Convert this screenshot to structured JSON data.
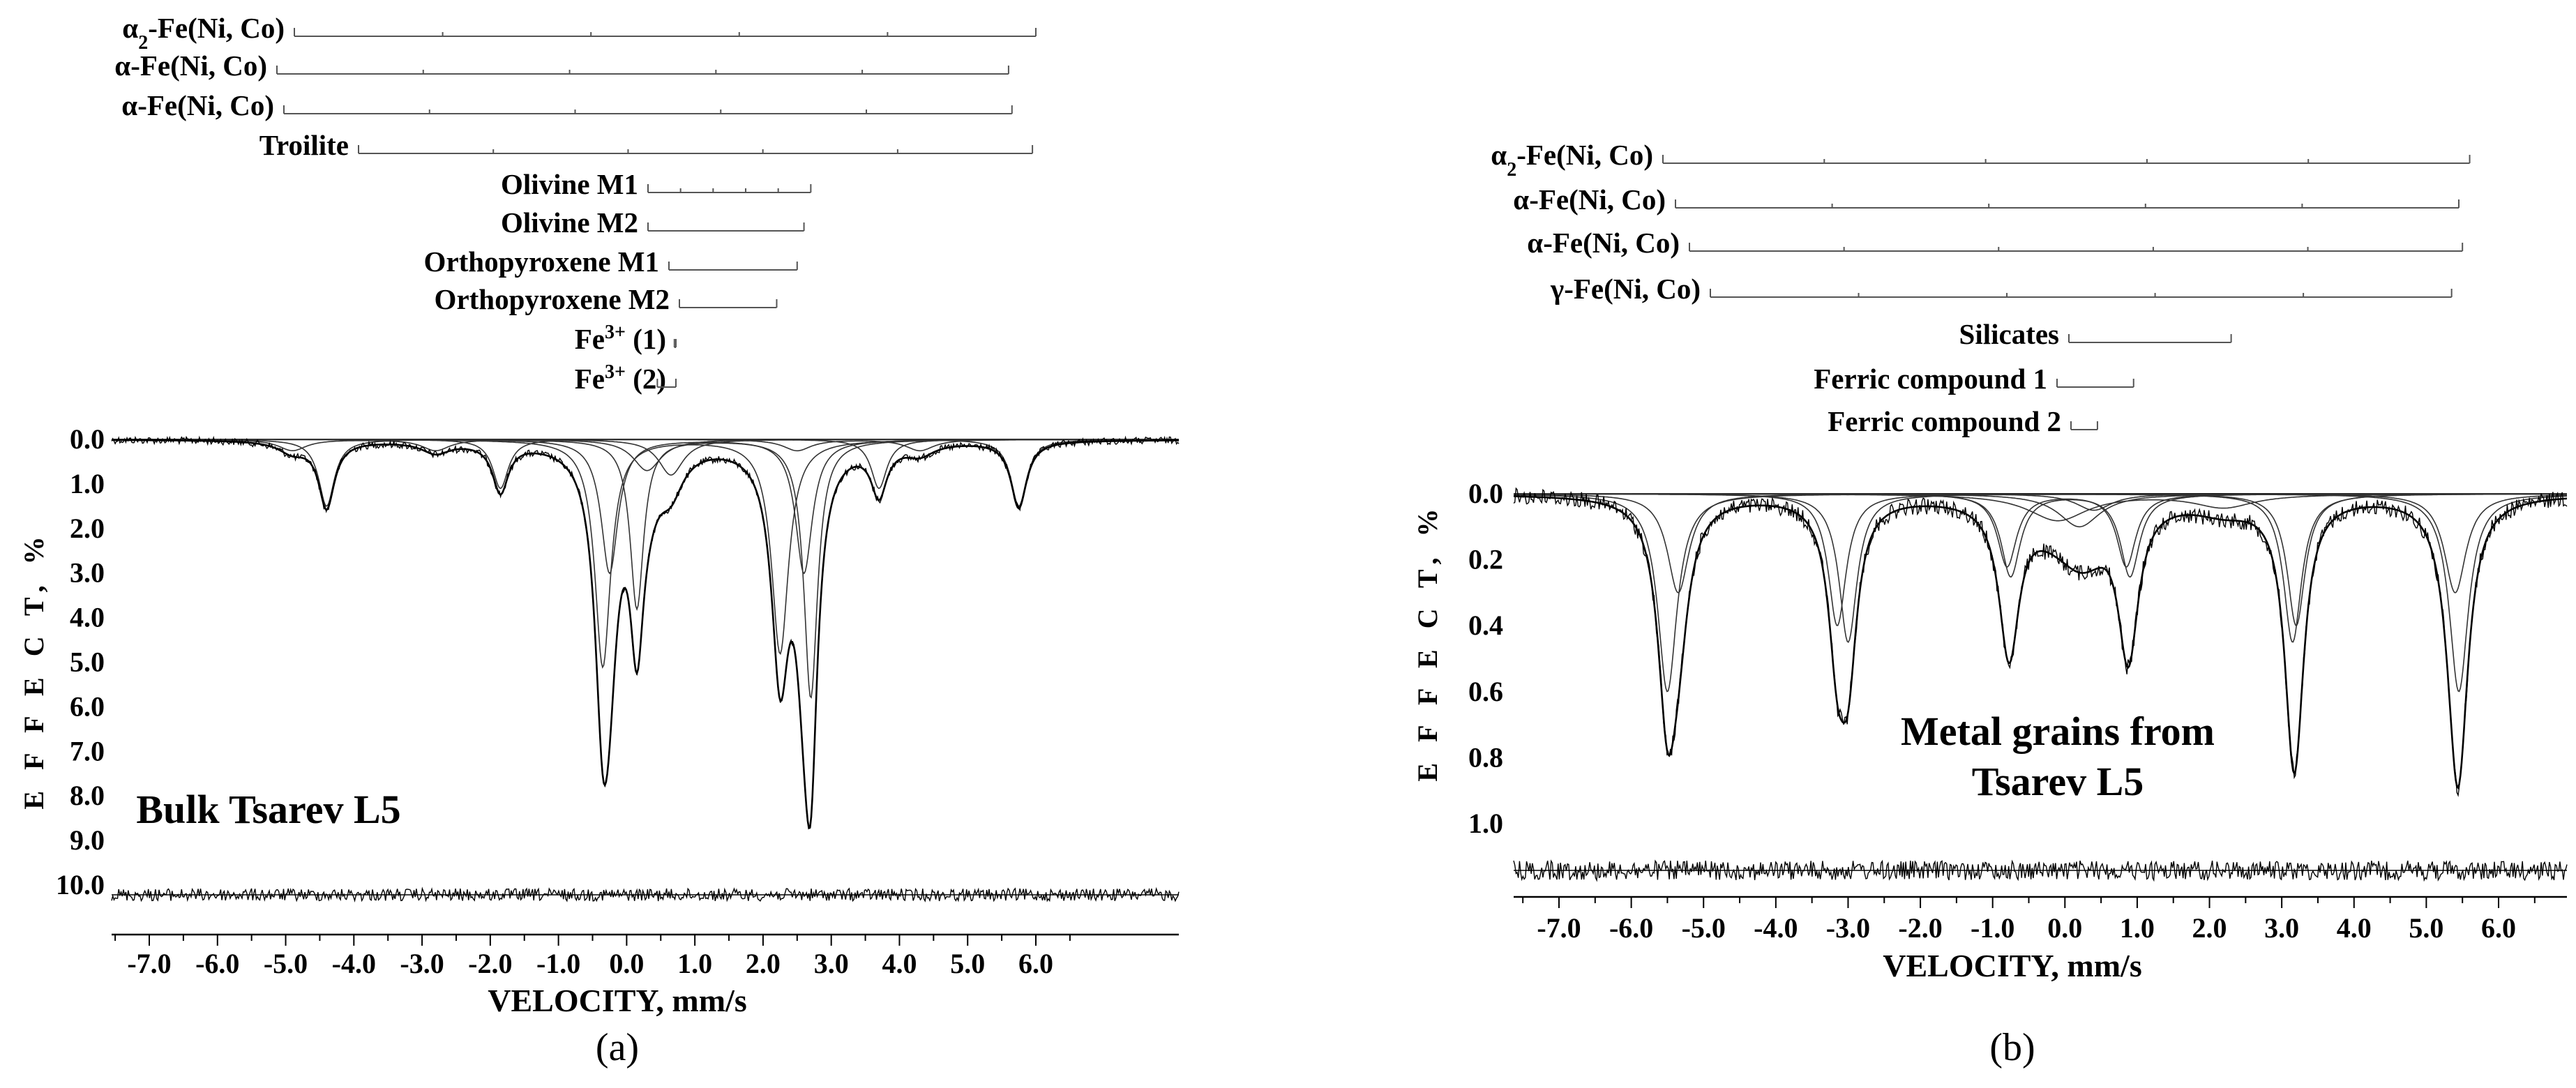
{
  "panels": [
    {
      "panel_label": "(a)",
      "title_lines": [
        "Bulk Tsarev L5"
      ],
      "components": [
        {
          "label_parts": [
            {
              "t": "α"
            },
            {
              "t": "2",
              "sub": true
            },
            {
              "t": "-Fe(Ni, Co)"
            }
          ],
          "start": -5.05,
          "end": 6.0
        },
        {
          "label_parts": [
            {
              "t": "α"
            },
            {
              "t": "-Fe(Ni, Co)"
            }
          ],
          "start": -5.15,
          "end": 5.6
        },
        {
          "label_parts": [
            {
              "t": "α"
            },
            {
              "t": "-Fe(Ni, Co)"
            }
          ],
          "start": -5.1,
          "end": 5.65
        },
        {
          "label_parts": [
            {
              "t": "Troilite"
            }
          ],
          "start": -4.4,
          "end": 5.95
        },
        {
          "label_parts": [
            {
              "t": "Olivine M1"
            }
          ],
          "start": -0.4,
          "end": 2.7
        },
        {
          "label_parts": [
            {
              "t": "Olivine M2"
            }
          ],
          "start": -0.4,
          "end": 2.6
        },
        {
          "label_parts": [
            {
              "t": "Orthopyroxene M1"
            }
          ],
          "start": -0.3,
          "end": 2.5
        },
        {
          "label_parts": [
            {
              "t": "Orthopyroxene M2"
            }
          ],
          "start": -0.2,
          "end": 2.2
        },
        {
          "label_parts": [
            {
              "t": "Fe"
            },
            {
              "t": "3+",
              "sup": true
            },
            {
              "t": " (1)"
            }
          ],
          "start": -0.15,
          "end": 0.7
        },
        {
          "label_parts": [
            {
              "t": "Fe"
            },
            {
              "t": "3+",
              "sup": true
            },
            {
              "t": " (2)"
            }
          ],
          "start": -0.15,
          "end": 0.45
        }
      ],
      "chart_data": {
        "type": "line",
        "title": "Bulk Tsarev L5",
        "xlabel": "VELOCITY,  mm/s",
        "ylabel": "E F F E C T,  %",
        "xlim": [
          -7.8,
          7.0
        ],
        "ylim": [
          0,
          10.8
        ],
        "y_inverted": true,
        "x_ticks": [
          -7.0,
          -6.0,
          -5.0,
          -4.0,
          -3.0,
          -2.0,
          -1.0,
          0.0,
          1.0,
          2.0,
          3.0,
          4.0,
          5.0,
          6.0
        ],
        "x_tick_labels": [
          "-7.0",
          "-6.0",
          "-5.0",
          "-4.0",
          "-3.0",
          "-2.0",
          "-1.0",
          "0.0",
          "1.0",
          "2.0",
          "3.0",
          "4.0",
          "5.0",
          "6.0"
        ],
        "y_ticks": [
          0,
          1,
          2,
          3,
          4,
          5,
          6,
          7,
          8,
          9,
          10
        ],
        "y_tick_labels": [
          "0.0",
          "1.0",
          "2.0",
          "3.0",
          "4.0",
          "5.0",
          "6.0",
          "7.0",
          "8.0",
          "9.0",
          "10.0"
        ],
        "grid": false,
        "residual_baseline": 10.3,
        "series": [
          {
            "peaks": [
              {
                "x": -4.4,
                "depth": 1.5,
                "w": 0.14
              }
            ]
          },
          {
            "peaks": [
              {
                "x": -1.85,
                "depth": 1.1,
                "w": 0.14
              }
            ]
          },
          {
            "peaks": [
              {
                "x": 3.7,
                "depth": 1.1,
                "w": 0.14
              }
            ]
          },
          {
            "peaks": [
              {
                "x": 5.75,
                "depth": 1.5,
                "w": 0.14
              }
            ]
          },
          {
            "peaks": [
              {
                "x": -0.35,
                "depth": 5.1,
                "w": 0.14
              },
              {
                "x": 2.25,
                "depth": 4.8,
                "w": 0.15
              }
            ]
          },
          {
            "peaks": [
              {
                "x": 0.15,
                "depth": 3.8,
                "w": 0.12
              },
              {
                "x": 2.7,
                "depth": 5.8,
                "w": 0.12
              }
            ]
          },
          {
            "peaks": [
              {
                "x": -0.25,
                "depth": 3.0,
                "w": 0.15
              },
              {
                "x": 2.6,
                "depth": 3.0,
                "w": 0.15
              }
            ]
          },
          {
            "peaks": [
              {
                "x": 0.65,
                "depth": 0.8,
                "w": 0.22
              }
            ]
          },
          {
            "peaks": [
              {
                "x": 0.3,
                "depth": 0.7,
                "w": 0.25
              }
            ]
          },
          {
            "peaks": [
              {
                "x": -4.9,
                "depth": 0.25,
                "w": 0.25
              },
              {
                "x": -2.8,
                "depth": 0.25,
                "w": 0.25
              },
              {
                "x": 2.5,
                "depth": 0.25,
                "w": 0.25
              },
              {
                "x": 4.3,
                "depth": 0.25,
                "w": 0.25
              }
            ]
          }
        ]
      }
    },
    {
      "panel_label": "(b)",
      "title_lines": [
        "Metal grains from",
        "Tsarev L5"
      ],
      "components": [
        {
          "label_parts": [
            {
              "t": "α"
            },
            {
              "t": "2",
              "sub": true
            },
            {
              "t": "-Fe(Ni, Co)"
            }
          ],
          "start": -5.5,
          "end": 5.6
        },
        {
          "label_parts": [
            {
              "t": "α"
            },
            {
              "t": "-Fe(Ni, Co)"
            }
          ],
          "start": -5.45,
          "end": 5.45
        },
        {
          "label_parts": [
            {
              "t": "α"
            },
            {
              "t": "-Fe(Ni, Co)"
            }
          ],
          "start": -5.35,
          "end": 5.5
        },
        {
          "label_parts": [
            {
              "t": "γ"
            },
            {
              "t": "-Fe(Ni, Co)"
            }
          ],
          "start": -5.2,
          "end": 5.35
        },
        {
          "label_parts": [
            {
              "t": "Silicates"
            }
          ],
          "start": 0.15,
          "end": 2.3
        },
        {
          "label_parts": [
            {
              "t": "Ferric compound 1"
            }
          ],
          "start": 0.0,
          "end": 0.95
        },
        {
          "label_parts": [
            {
              "t": "Ferric compound 2"
            }
          ],
          "start": 0.2,
          "end": 0.45
        }
      ],
      "chart_data": {
        "type": "line",
        "title": "Metal grains from Tsarev L5",
        "xlabel": "VELOCITY,  mm/s",
        "ylabel": "E F F E C T,  %",
        "xlim": [
          -7.8,
          7.0
        ],
        "ylim": [
          -0.08,
          1.3
        ],
        "y_inverted": true,
        "x_ticks": [
          -7.0,
          -6.0,
          -5.0,
          -4.0,
          -3.0,
          -2.0,
          -1.0,
          0.0,
          1.0,
          2.0,
          3.0,
          4.0,
          5.0,
          6.0
        ],
        "x_tick_labels": [
          "-7.0",
          "-6.0",
          "-5.0",
          "-4.0",
          "-3.0",
          "-2.0",
          "-1.0",
          "0.0",
          "1.0",
          "2.0",
          "3.0",
          "4.0",
          "5.0",
          "6.0"
        ],
        "y_ticks": [
          0.0,
          0.2,
          0.4,
          0.6,
          0.8,
          1.0
        ],
        "y_tick_labels": [
          "0.0",
          "0.2",
          "0.4",
          "0.6",
          "0.8",
          "1.0"
        ],
        "grid": false,
        "residual_baseline": 1.13,
        "series": [
          {
            "peaks": [
              {
                "x": -5.35,
                "depth": 0.3,
                "w": 0.18
              },
              {
                "x": 5.4,
                "depth": 0.3,
                "w": 0.18
              }
            ]
          },
          {
            "peaks": [
              {
                "x": -5.5,
                "depth": 0.6,
                "w": 0.16
              },
              {
                "x": 5.45,
                "depth": 0.6,
                "w": 0.16
              }
            ]
          },
          {
            "peaks": [
              {
                "x": -3.15,
                "depth": 0.4,
                "w": 0.15
              },
              {
                "x": 3.2,
                "depth": 0.4,
                "w": 0.15
              }
            ]
          },
          {
            "peaks": [
              {
                "x": -3.0,
                "depth": 0.45,
                "w": 0.15
              },
              {
                "x": 3.15,
                "depth": 0.45,
                "w": 0.15
              }
            ]
          },
          {
            "peaks": [
              {
                "x": -0.8,
                "depth": 0.22,
                "w": 0.16
              },
              {
                "x": 0.85,
                "depth": 0.22,
                "w": 0.16
              }
            ]
          },
          {
            "peaks": [
              {
                "x": -0.75,
                "depth": 0.25,
                "w": 0.16
              },
              {
                "x": 0.9,
                "depth": 0.25,
                "w": 0.16
              }
            ]
          },
          {
            "peaks": [
              {
                "x": -0.1,
                "depth": 0.08,
                "w": 0.5
              },
              {
                "x": 2.2,
                "depth": 0.04,
                "w": 0.5
              }
            ]
          },
          {
            "peaks": [
              {
                "x": 0.2,
                "depth": 0.1,
                "w": 0.35
              }
            ]
          },
          {
            "peaks": [
              {
                "x": 0.4,
                "depth": 0.05,
                "w": 0.3
              }
            ]
          }
        ]
      }
    }
  ]
}
